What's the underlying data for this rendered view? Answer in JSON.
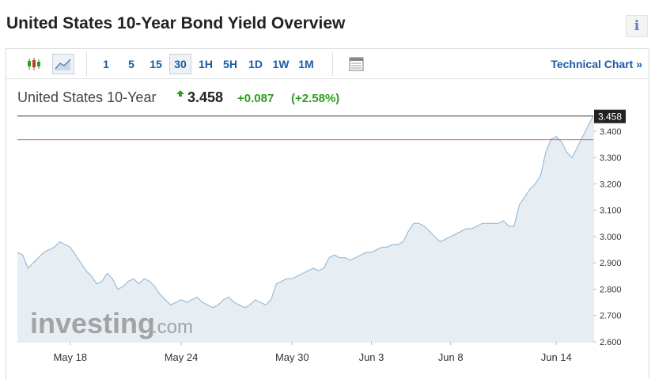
{
  "header": {
    "title": "United States 10-Year Bond Yield Overview",
    "info_label": "i"
  },
  "toolbar": {
    "chart_type_icons": [
      "candlestick-icon",
      "line-chart-icon"
    ],
    "active_chart_type": "line-chart-icon",
    "timeframes": [
      "1",
      "5",
      "15",
      "30",
      "1H",
      "5H",
      "1D",
      "1W",
      "1M"
    ],
    "active_timeframe": "30",
    "table_icon": "table-icon",
    "technical_chart_label": "Technical Chart »"
  },
  "quote": {
    "name": "United States 10-Year",
    "last": "3.458",
    "change": "+0.087",
    "change_pct": "(+2.58%)",
    "direction": "up",
    "up_color": "#2e9e1f"
  },
  "watermark": {
    "brand": "investing",
    "suffix": ".com"
  },
  "chart_data": {
    "type": "area",
    "title": "",
    "xlabel": "",
    "ylabel": "",
    "ylim": [
      2.6,
      3.46
    ],
    "y_ticks": [
      "2.600",
      "2.700",
      "2.800",
      "2.900",
      "3.000",
      "3.100",
      "3.200",
      "3.300",
      "3.400"
    ],
    "x_tick_labels": [
      "May 18",
      "May 24",
      "May 30",
      "Jun 3",
      "Jun 8",
      "Jun 14"
    ],
    "x_tick_index": [
      10,
      31,
      52,
      67,
      82,
      102
    ],
    "last_value_label": "3.458",
    "last_value": 3.458,
    "reference_line": 3.368,
    "reference_line_color": "#d9506a",
    "series_color": "#9dbcd9",
    "fill_color": "#e6edf3",
    "series": [
      {
        "name": "",
        "values": [
          2.94,
          2.93,
          2.88,
          2.9,
          2.92,
          2.94,
          2.95,
          2.96,
          2.98,
          2.97,
          2.96,
          2.93,
          2.9,
          2.87,
          2.85,
          2.82,
          2.83,
          2.86,
          2.84,
          2.8,
          2.81,
          2.83,
          2.84,
          2.82,
          2.84,
          2.83,
          2.81,
          2.78,
          2.76,
          2.74,
          2.75,
          2.76,
          2.75,
          2.76,
          2.77,
          2.75,
          2.74,
          2.73,
          2.74,
          2.76,
          2.77,
          2.75,
          2.74,
          2.73,
          2.74,
          2.76,
          2.75,
          2.74,
          2.76,
          2.82,
          2.83,
          2.84,
          2.84,
          2.85,
          2.86,
          2.87,
          2.88,
          2.87,
          2.88,
          2.92,
          2.93,
          2.92,
          2.92,
          2.91,
          2.92,
          2.93,
          2.94,
          2.94,
          2.95,
          2.96,
          2.96,
          2.97,
          2.97,
          2.98,
          3.02,
          3.05,
          3.05,
          3.04,
          3.02,
          3.0,
          2.98,
          2.99,
          3.0,
          3.01,
          3.02,
          3.03,
          3.03,
          3.04,
          3.05,
          3.05,
          3.05,
          3.05,
          3.06,
          3.04,
          3.04,
          3.12,
          3.15,
          3.18,
          3.2,
          3.23,
          3.32,
          3.37,
          3.38,
          3.36,
          3.32,
          3.3,
          3.34,
          3.38,
          3.42,
          3.458
        ]
      }
    ],
    "grid": false
  }
}
